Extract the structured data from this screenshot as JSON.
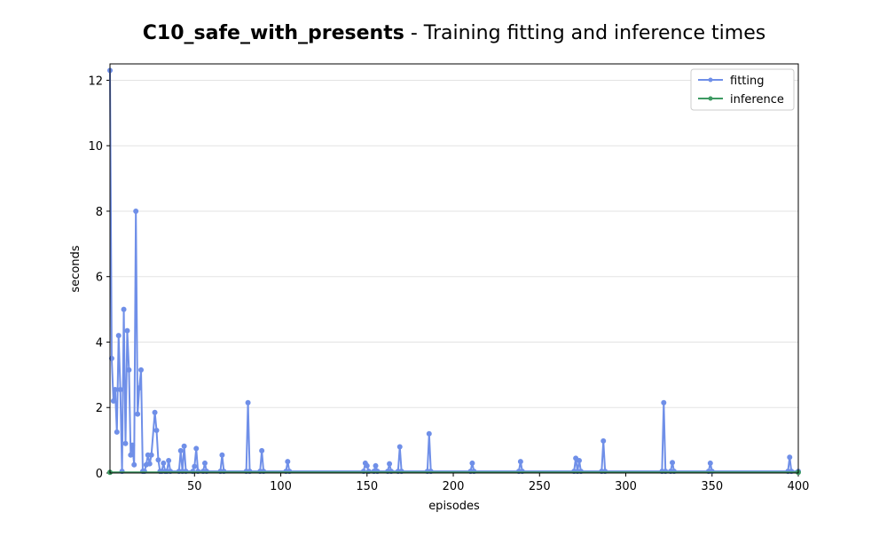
{
  "chart_data": {
    "type": "line",
    "title_bold": "C10_safe_with_presents",
    "title_rest": "- Training fitting and inference times",
    "xlabel": "episodes",
    "ylabel": "seconds",
    "xlim": [
      1,
      400
    ],
    "ylim": [
      0,
      12.5
    ],
    "xticks": [
      50,
      100,
      150,
      200,
      250,
      300,
      350,
      400
    ],
    "yticks": [
      0,
      2,
      4,
      6,
      8,
      10,
      12
    ],
    "grid": true,
    "legend": "upper right",
    "series": [
      {
        "name": "fitting",
        "color": "#6f8fe8",
        "x": [
          1,
          2,
          3,
          4,
          5,
          6,
          7,
          8,
          9,
          10,
          11,
          12,
          13,
          14,
          15,
          16,
          17,
          18,
          19,
          20,
          21,
          22,
          23,
          24,
          25,
          27,
          28,
          29,
          30,
          31,
          32,
          33,
          34,
          35,
          36,
          41,
          42,
          43,
          44,
          45,
          49,
          50,
          51,
          52,
          55,
          56,
          57,
          65,
          66,
          67,
          80,
          81,
          82,
          88,
          89,
          90,
          103,
          104,
          105,
          148,
          149,
          150,
          151,
          154,
          155,
          156,
          162,
          163,
          164,
          168,
          169,
          170,
          185,
          186,
          187,
          210,
          211,
          212,
          238,
          239,
          240,
          270,
          271,
          272,
          273,
          274,
          286,
          287,
          288,
          321,
          322,
          323,
          326,
          327,
          328,
          348,
          349,
          350,
          394,
          395,
          396,
          400
        ],
        "values": [
          12.3,
          3.5,
          2.2,
          2.55,
          1.25,
          4.2,
          2.55,
          0.05,
          5.0,
          0.9,
          4.35,
          3.15,
          0.55,
          0.85,
          0.25,
          8.0,
          1.8,
          2.6,
          3.15,
          0.05,
          0.05,
          0.25,
          0.55,
          0.28,
          0.55,
          1.85,
          1.3,
          0.4,
          0.05,
          0.05,
          0.3,
          0.05,
          0.05,
          0.38,
          0.05,
          0.05,
          0.68,
          0.05,
          0.82,
          0.05,
          0.05,
          0.2,
          0.75,
          0.05,
          0.05,
          0.3,
          0.05,
          0.05,
          0.55,
          0.05,
          0.05,
          2.15,
          0.05,
          0.05,
          0.68,
          0.05,
          0.05,
          0.35,
          0.05,
          0.05,
          0.3,
          0.22,
          0.05,
          0.05,
          0.22,
          0.05,
          0.05,
          0.28,
          0.05,
          0.05,
          0.8,
          0.05,
          0.05,
          1.2,
          0.05,
          0.05,
          0.3,
          0.05,
          0.05,
          0.35,
          0.05,
          0.05,
          0.45,
          0.05,
          0.38,
          0.05,
          0.05,
          0.98,
          0.05,
          0.05,
          2.15,
          0.05,
          0.05,
          0.32,
          0.05,
          0.05,
          0.3,
          0.05,
          0.05,
          0.48,
          0.05,
          0.05
        ]
      },
      {
        "name": "inference",
        "color": "#3d9a62",
        "x": [
          1,
          400
        ],
        "values": [
          0.02,
          0.02
        ]
      }
    ]
  }
}
